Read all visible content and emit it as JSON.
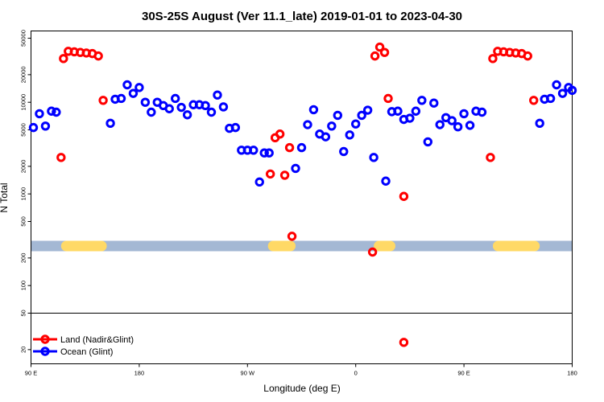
{
  "chart_data": {
    "type": "scatter",
    "title": "30S-25S August (Ver 11.1_late)   2019-01-01 to 2023-04-30",
    "xlabel": "Longitude (deg E)",
    "ylabel": "N Total",
    "x_axis": {
      "ticks": [
        90,
        180,
        270,
        360,
        450,
        540
      ],
      "tick_labels": [
        "90 E",
        "180",
        "90 W",
        "0",
        "90 E",
        "180"
      ],
      "range": [
        90,
        540
      ]
    },
    "y_axis": {
      "scale": "log",
      "range": [
        14,
        60000
      ],
      "ticks": [
        20,
        50,
        100,
        200,
        500,
        1000,
        2000,
        5000,
        10000,
        20000,
        50000
      ],
      "tick_labels": [
        "20",
        "50",
        "100",
        "200",
        "500",
        "1000",
        "2000",
        "5000",
        "10000",
        "20000",
        "50000"
      ]
    },
    "reference_line": 50,
    "land_mask": {
      "y_center": 270,
      "land_color": "#FFD966",
      "ocean_color": "#A4B8D4",
      "land_segments": [
        [
          115,
          153
        ],
        [
          287,
          310
        ],
        [
          375,
          393
        ],
        [
          474,
          513
        ]
      ]
    },
    "series": [
      {
        "name": "Land (Nadir&Glint)",
        "color": "#FF0000",
        "points": [
          [
            115,
            2500
          ],
          [
            117,
            30000
          ],
          [
            121,
            36000
          ],
          [
            126,
            35500
          ],
          [
            131,
            35000
          ],
          [
            136,
            34500
          ],
          [
            141,
            34000
          ],
          [
            146,
            32000
          ],
          [
            150,
            10500
          ],
          [
            289,
            1650
          ],
          [
            293,
            4100
          ],
          [
            297,
            4500
          ],
          [
            301,
            1600
          ],
          [
            305,
            3200
          ],
          [
            307,
            345
          ],
          [
            374,
            232
          ],
          [
            376,
            32000
          ],
          [
            380,
            40000
          ],
          [
            384,
            35000
          ],
          [
            387,
            11000
          ],
          [
            400,
            940
          ],
          [
            400,
            24
          ],
          [
            472,
            2500
          ],
          [
            474,
            30000
          ],
          [
            478,
            36000
          ],
          [
            483,
            35500
          ],
          [
            488,
            35000
          ],
          [
            493,
            34500
          ],
          [
            498,
            34000
          ],
          [
            503,
            32000
          ],
          [
            508,
            10500
          ]
        ]
      },
      {
        "name": "Ocean (Glint)",
        "color": "#0000FF",
        "points": [
          [
            92,
            5300
          ],
          [
            97,
            7500
          ],
          [
            102,
            5500
          ],
          [
            107,
            8000
          ],
          [
            111,
            7800
          ],
          [
            156,
            5900
          ],
          [
            160,
            10800
          ],
          [
            165,
            11000
          ],
          [
            170,
            15500
          ],
          [
            175,
            12500
          ],
          [
            180,
            14500
          ],
          [
            185,
            10000
          ],
          [
            190,
            7800
          ],
          [
            195,
            10000
          ],
          [
            200,
            9200
          ],
          [
            205,
            8500
          ],
          [
            210,
            11000
          ],
          [
            215,
            8800
          ],
          [
            220,
            7300
          ],
          [
            225,
            9400
          ],
          [
            230,
            9400
          ],
          [
            235,
            9200
          ],
          [
            240,
            7800
          ],
          [
            245,
            12000
          ],
          [
            250,
            8900
          ],
          [
            255,
            5200
          ],
          [
            260,
            5300
          ],
          [
            265,
            3000
          ],
          [
            270,
            3000
          ],
          [
            275,
            3000
          ],
          [
            280,
            1350
          ],
          [
            284,
            2800
          ],
          [
            288,
            2800
          ],
          [
            310,
            1900
          ],
          [
            315,
            3200
          ],
          [
            320,
            5700
          ],
          [
            325,
            8300
          ],
          [
            330,
            4500
          ],
          [
            335,
            4200
          ],
          [
            340,
            5500
          ],
          [
            345,
            7200
          ],
          [
            350,
            2900
          ],
          [
            355,
            4400
          ],
          [
            360,
            5800
          ],
          [
            365,
            7200
          ],
          [
            370,
            8200
          ],
          [
            375,
            2500
          ],
          [
            385,
            1380
          ],
          [
            390,
            7900
          ],
          [
            395,
            8000
          ],
          [
            400,
            6500
          ],
          [
            405,
            6700
          ],
          [
            410,
            8000
          ],
          [
            415,
            10500
          ],
          [
            420,
            3700
          ],
          [
            425,
            9800
          ],
          [
            430,
            5700
          ],
          [
            435,
            6800
          ],
          [
            440,
            6300
          ],
          [
            445,
            5400
          ],
          [
            450,
            7500
          ],
          [
            455,
            5600
          ],
          [
            460,
            8000
          ],
          [
            465,
            7800
          ],
          [
            513,
            5900
          ],
          [
            517,
            10800
          ],
          [
            522,
            11000
          ],
          [
            527,
            15500
          ],
          [
            532,
            12500
          ],
          [
            537,
            14500
          ],
          [
            540,
            13500
          ]
        ]
      }
    ],
    "legend": {
      "position": "bottom-left"
    }
  }
}
